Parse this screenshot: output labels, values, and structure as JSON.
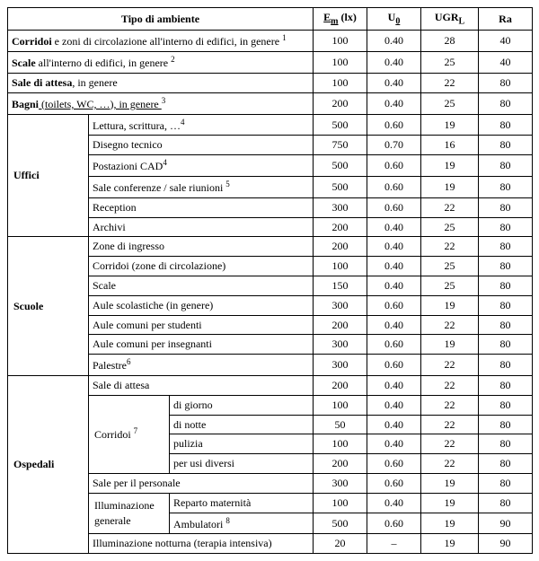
{
  "header": {
    "tipo": "Tipo di ambiente",
    "em": "E",
    "em_sub": "m",
    "em_unit": " (lx)",
    "u0": "U",
    "u0_sub": "0",
    "ugr": "UGR",
    "ugr_sub": "L",
    "ra": "Ra"
  },
  "top_rows": [
    {
      "label_bold": "Corridoi",
      "label_rest": "  e zoni di circolazione all'interno di edifici, in genere ",
      "sup": "1",
      "em": "100",
      "u0": "0.40",
      "ugr": "28",
      "ra": "40"
    },
    {
      "label_bold": "Scale",
      "label_rest": " all'interno di edifici, in genere ",
      "sup": "2",
      "em": "100",
      "u0": "0.40",
      "ugr": "25",
      "ra": "40"
    },
    {
      "label_bold": "Sale di attesa",
      "label_rest": ", in genere",
      "sup": "",
      "em": "100",
      "u0": "0.40",
      "ugr": "22",
      "ra": "80"
    },
    {
      "label_bold": "Bagni",
      "label_rest": " (toilets, WC, …), in genere ",
      "sup": "3",
      "underline_rest": true,
      "em": "200",
      "u0": "0.40",
      "ugr": "25",
      "ra": "80"
    }
  ],
  "uffici": {
    "title": "Uffici",
    "rows": [
      {
        "label": "Lettura, scrittura, …",
        "sup": "4",
        "em": "500",
        "u0": "0.60",
        "ugr": "19",
        "ra": "80"
      },
      {
        "label": "Disegno tecnico",
        "sup": "",
        "em": "750",
        "u0": "0.70",
        "ugr": "16",
        "ra": "80"
      },
      {
        "label": "Postazioni CAD",
        "sup": "4",
        "em": "500",
        "u0": "0.60",
        "ugr": "19",
        "ra": "80"
      },
      {
        "label": "Sale conferenze / sale riunioni ",
        "sup": "5",
        "em": "500",
        "u0": "0.60",
        "ugr": "19",
        "ra": "80"
      },
      {
        "label": "Reception",
        "sup": "",
        "em": "300",
        "u0": "0.60",
        "ugr": "22",
        "ra": "80"
      },
      {
        "label": "Archivi",
        "sup": "",
        "em": "200",
        "u0": "0.40",
        "ugr": "25",
        "ra": "80"
      }
    ]
  },
  "scuole": {
    "title": "Scuole",
    "rows": [
      {
        "label": "Zone di ingresso",
        "sup": "",
        "em": "200",
        "u0": "0.40",
        "ugr": "22",
        "ra": "80"
      },
      {
        "label": "Corridoi (zone di circolazione)",
        "sup": "",
        "em": "100",
        "u0": "0.40",
        "ugr": "25",
        "ra": "80"
      },
      {
        "label": "Scale",
        "sup": "",
        "em": "150",
        "u0": "0.40",
        "ugr": "25",
        "ra": "80"
      },
      {
        "label": "Aule scolastiche (in genere)",
        "sup": "",
        "em": "300",
        "u0": "0.60",
        "ugr": "19",
        "ra": "80"
      },
      {
        "label": "Aule comuni per studenti",
        "sup": "",
        "em": "200",
        "u0": "0.40",
        "ugr": "22",
        "ra": "80"
      },
      {
        "label": "Aule comuni per insegnanti",
        "sup": "",
        "em": "300",
        "u0": "0.60",
        "ugr": "19",
        "ra": "80"
      },
      {
        "label": "Palestre",
        "sup": "6",
        "em": "300",
        "u0": "0.60",
        "ugr": "22",
        "ra": "80"
      }
    ]
  },
  "ospedali": {
    "title": "Ospedali",
    "row_attesa": {
      "label": "Sale di attesa",
      "em": "200",
      "u0": "0.40",
      "ugr": "22",
      "ra": "80"
    },
    "corridoi": {
      "title": "Corridoi ",
      "sup": "7",
      "rows": [
        {
          "label": "di giorno",
          "em": "100",
          "u0": "0.40",
          "ugr": "22",
          "ra": "80"
        },
        {
          "label": "di notte",
          "em": "50",
          "u0": "0.40",
          "ugr": "22",
          "ra": "80"
        },
        {
          "label": "pulizia",
          "em": "100",
          "u0": "0.40",
          "ugr": "22",
          "ra": "80"
        },
        {
          "label": "per usi diversi",
          "em": "200",
          "u0": "0.60",
          "ugr": "22",
          "ra": "80"
        }
      ]
    },
    "row_personale": {
      "label": "Sale per il personale",
      "em": "300",
      "u0": "0.60",
      "ugr": "19",
      "ra": "80"
    },
    "illum_gen": {
      "title": "Illuminazione generale",
      "rows": [
        {
          "label": "Reparto maternità",
          "em": "100",
          "u0": "0.40",
          "ugr": "19",
          "ra": "80"
        },
        {
          "label": "Ambulatori ",
          "sup": "8",
          "em": "500",
          "u0": "0.60",
          "ugr": "19",
          "ra": "90"
        }
      ]
    },
    "row_notturna": {
      "label": "Illuminazione notturna (terapia intensiva)",
      "em": "20",
      "u0": "–",
      "ugr": "19",
      "ra": "90"
    }
  },
  "colwidths": {
    "c1": 90,
    "c2": 90,
    "c3": 160,
    "c4": 60,
    "c5": 60,
    "c6": 64,
    "c7": 60
  }
}
